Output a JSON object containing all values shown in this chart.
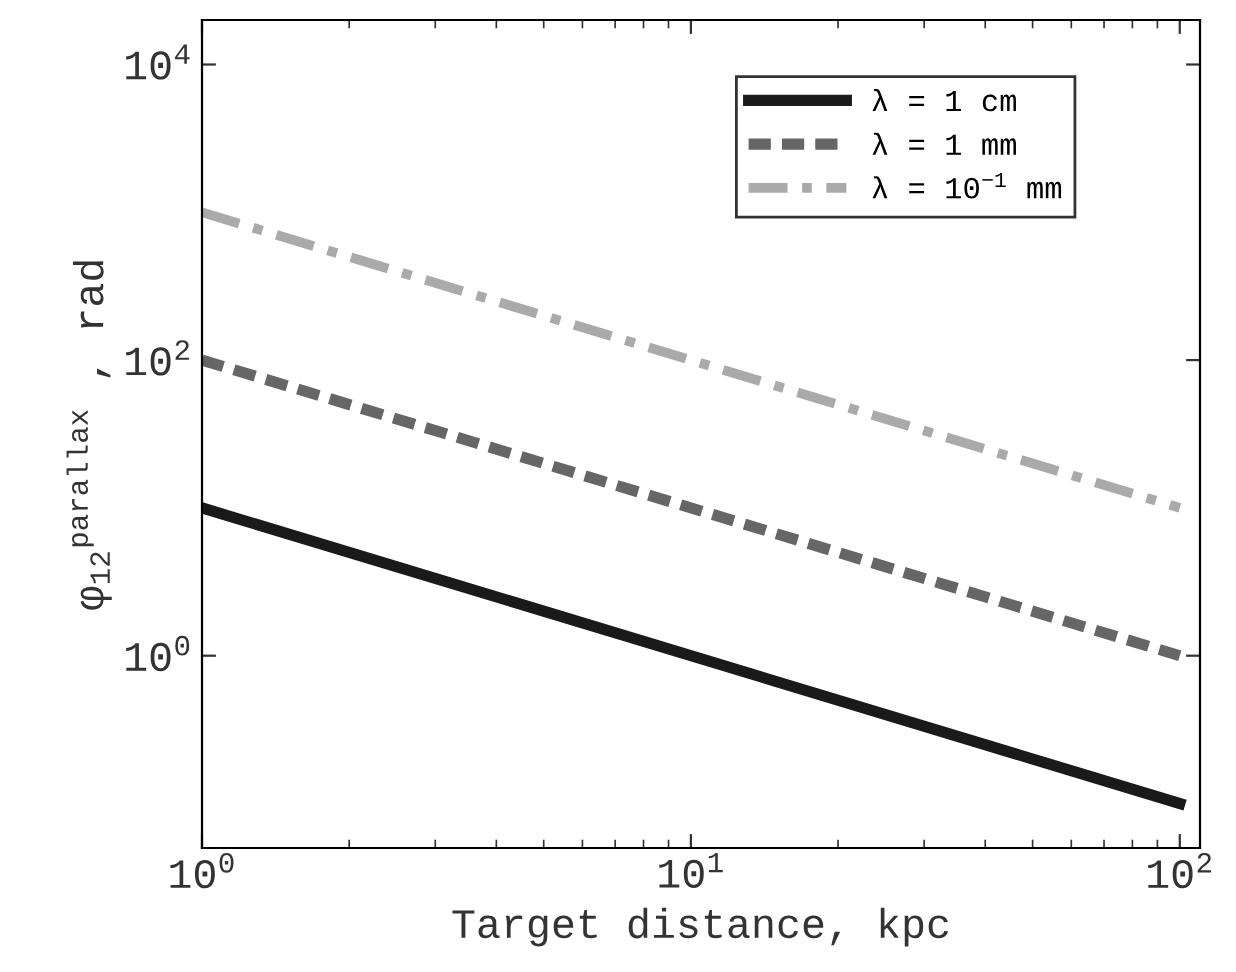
{
  "chart_data": {
    "type": "line",
    "xlabel": "Target distance, kpc",
    "ylabel": "φ$_{12}$$^{parallax}$ , rad",
    "log": "xy",
    "grid": false,
    "legend": "top right",
    "x": [
      1,
      100
    ],
    "series": [
      {
        "name": "λ = 1 cm",
        "color": "#1a1a1a",
        "line_style": "solid",
        "values": [
          10,
          0.1
        ]
      },
      {
        "name": "λ = 1 mm",
        "color": "#666666",
        "line_style": "dashed",
        "values": [
          100,
          1
        ]
      },
      {
        "name": "λ = 10$^{−1}$ mm",
        "color": "#aaaaaa",
        "line_style": "dashdot",
        "values": [
          1000,
          10
        ]
      }
    ],
    "xlim": [
      1,
      110
    ],
    "ylim": [
      0.05,
      20000
    ],
    "xticks": [
      {
        "value": 1,
        "label": "10$^{0}$"
      },
      {
        "value": 10,
        "label": "10$^{1}$"
      },
      {
        "value": 100,
        "label": "10$^{2}$"
      }
    ],
    "yticks": [
      {
        "value": 1,
        "label": "10$^{0}$"
      },
      {
        "value": 100,
        "label": "10$^{2}$"
      },
      {
        "value": 10000,
        "label": "10$^{4}$"
      }
    ]
  }
}
